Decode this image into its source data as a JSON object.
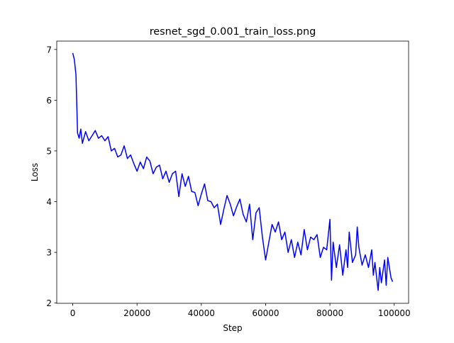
{
  "chart_data": {
    "type": "line",
    "title": "resnet_sgd_0.001_train_loss.png",
    "x_label": "Step",
    "y_label": "Loss",
    "color": "#0000ff",
    "x": [
      0,
      500,
      1000,
      1500,
      2000,
      2500,
      3000,
      4000,
      5000,
      6000,
      7000,
      8000,
      9000,
      10000,
      11000,
      12000,
      13000,
      14000,
      15000,
      16000,
      17000,
      18000,
      19000,
      20000,
      21000,
      22000,
      23000,
      24000,
      25000,
      26000,
      27000,
      28000,
      29000,
      30000,
      31000,
      32000,
      33000,
      34000,
      35000,
      36000,
      37000,
      38000,
      39000,
      40000,
      41000,
      42000,
      43000,
      44000,
      45000,
      46000,
      47000,
      48000,
      49000,
      50000,
      51000,
      52000,
      53000,
      54000,
      55000,
      56000,
      57000,
      58000,
      59000,
      60000,
      61000,
      62000,
      63000,
      64000,
      65000,
      66000,
      67000,
      68000,
      69000,
      70000,
      71000,
      72000,
      73000,
      74000,
      75000,
      76000,
      77000,
      78000,
      79000,
      80000,
      80500,
      81000,
      82000,
      83000,
      84000,
      85000,
      85500,
      86000,
      87000,
      88000,
      88500,
      89000,
      90000,
      91000,
      92000,
      93000,
      93500,
      94000,
      95000,
      95500,
      96000,
      97000,
      97500,
      98000,
      99000,
      99500
    ],
    "values": [
      6.93,
      6.8,
      6.5,
      5.35,
      5.25,
      5.43,
      5.15,
      5.38,
      5.2,
      5.3,
      5.4,
      5.25,
      5.3,
      5.2,
      5.28,
      5.0,
      5.05,
      4.88,
      4.92,
      5.1,
      4.85,
      4.92,
      4.75,
      4.6,
      4.78,
      4.65,
      4.88,
      4.8,
      4.55,
      4.68,
      4.72,
      4.45,
      4.6,
      4.38,
      4.55,
      4.6,
      4.1,
      4.55,
      4.3,
      4.5,
      4.2,
      4.18,
      3.92,
      4.15,
      4.35,
      4.02,
      4.0,
      3.88,
      3.95,
      3.55,
      3.85,
      4.12,
      3.95,
      3.72,
      3.9,
      4.05,
      3.75,
      3.6,
      3.95,
      3.25,
      3.78,
      3.88,
      3.3,
      2.85,
      3.2,
      3.55,
      3.4,
      3.6,
      3.25,
      3.4,
      3.0,
      3.25,
      2.9,
      3.2,
      2.95,
      3.45,
      3.05,
      3.3,
      3.25,
      3.35,
      2.9,
      3.1,
      3.05,
      3.65,
      2.45,
      3.2,
      2.7,
      3.15,
      2.55,
      3.05,
      2.7,
      3.4,
      2.8,
      2.95,
      3.5,
      3.1,
      2.75,
      2.95,
      2.7,
      3.05,
      2.55,
      2.8,
      2.25,
      2.7,
      2.4,
      2.85,
      2.35,
      2.9,
      2.5,
      2.42
    ],
    "xlim": [
      -4975,
      104475
    ],
    "ylim": [
      1.995,
      7.165
    ],
    "xticks": [
      0,
      20000,
      40000,
      60000,
      80000,
      100000
    ],
    "yticks": [
      2,
      3,
      4,
      5,
      6,
      7
    ]
  }
}
